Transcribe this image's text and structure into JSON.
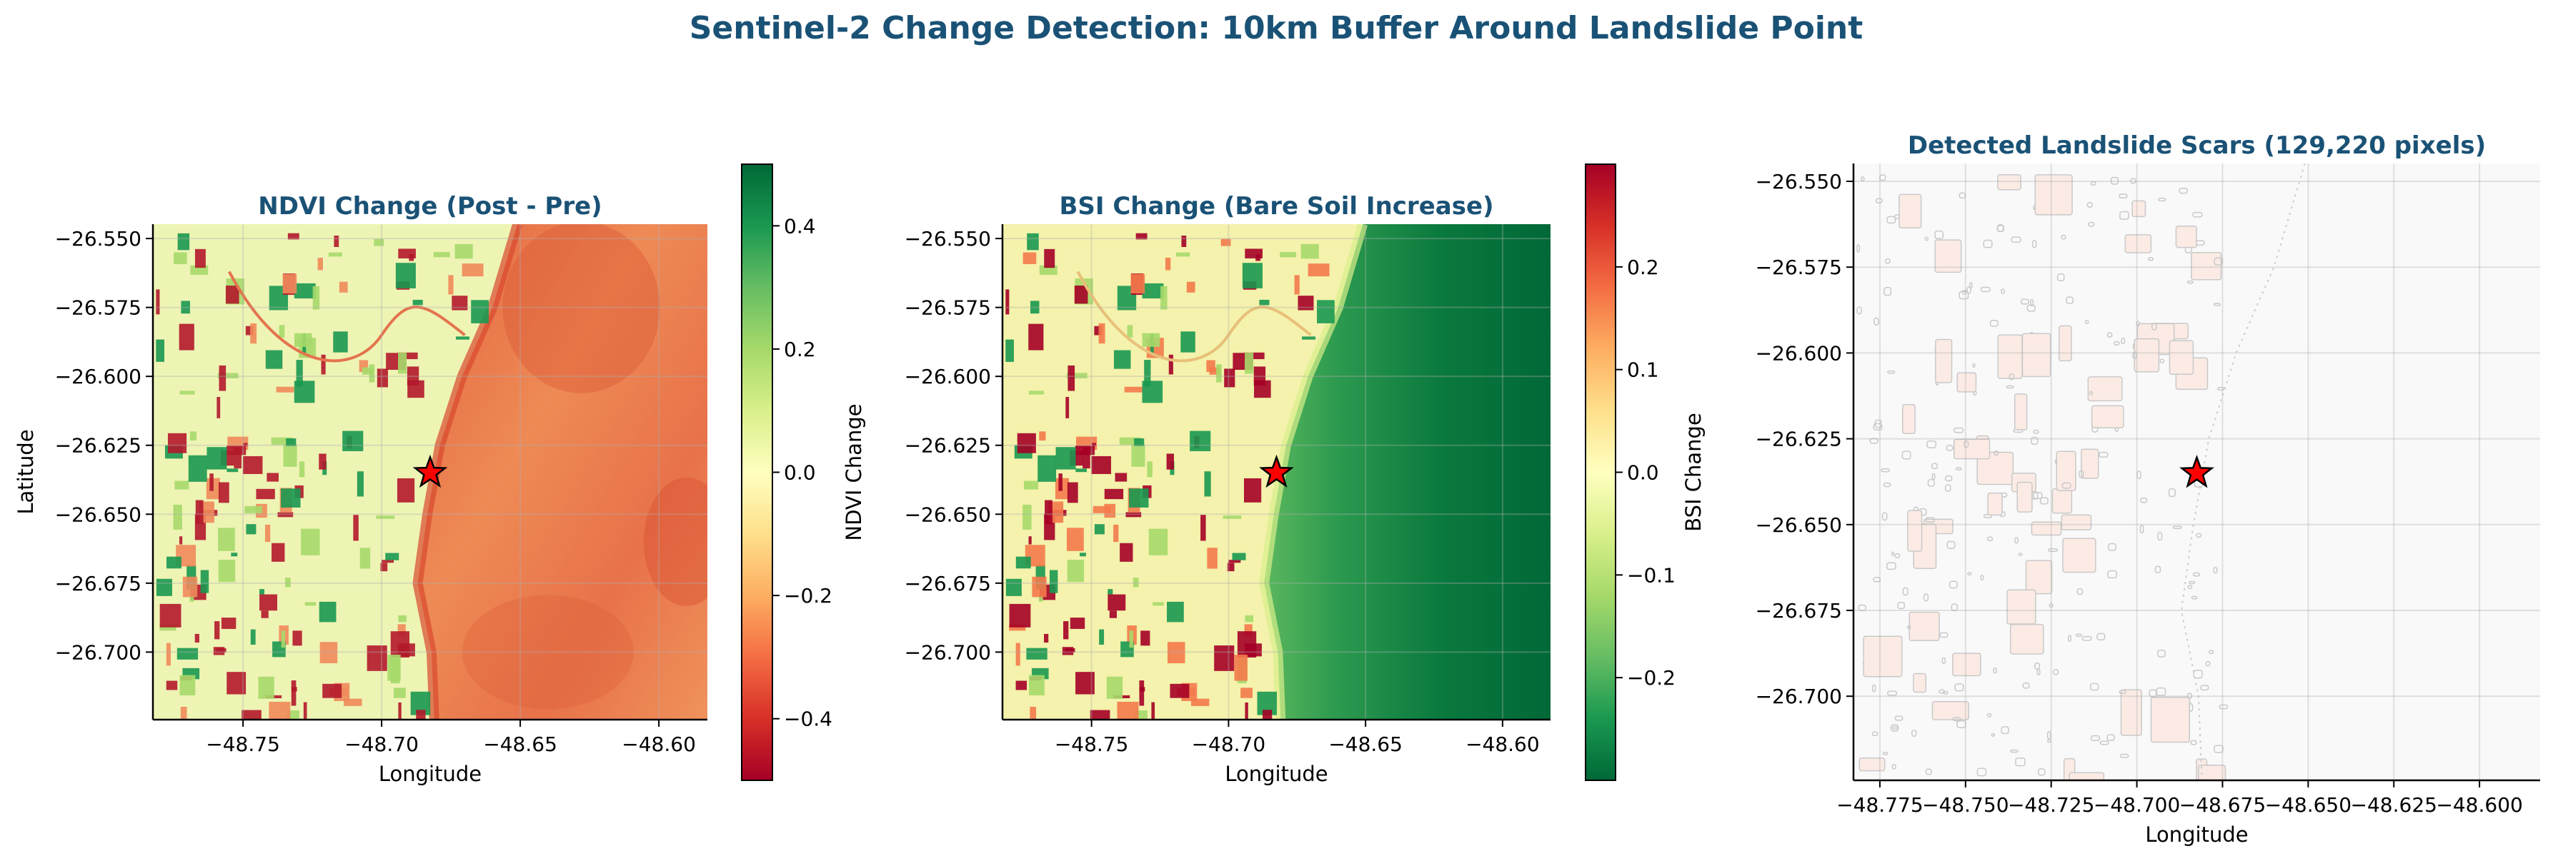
{
  "figure": {
    "title": "Sentinel-2 Change Detection: 10km Buffer Around Landslide Point",
    "title_color": "#1a5276"
  },
  "chart_data": [
    {
      "type": "heatmap",
      "title": "NDVI Change (Post - Pre)",
      "xlabel": "Longitude",
      "ylabel": "Latitude",
      "xlim": [
        -48.7825,
        -48.5825
      ],
      "ylim": [
        -26.7245,
        -26.5448
      ],
      "xticks": [
        -48.75,
        -48.7,
        -48.65,
        -48.6
      ],
      "xtick_labels": [
        "−48.75",
        "−48.70",
        "−48.65",
        "−48.60"
      ],
      "yticks": [
        -26.55,
        -26.575,
        -26.6,
        -26.625,
        -26.65,
        -26.675,
        -26.7
      ],
      "ytick_labels": [
        "−26.550",
        "−26.575",
        "−26.600",
        "−26.625",
        "−26.650",
        "−26.675",
        "−26.700"
      ],
      "grid": true,
      "colormap": "RdYlGn",
      "colorbar": {
        "label": "NDVI Change",
        "range": [
          -0.5,
          0.5
        ],
        "ticks": [
          -0.4,
          -0.2,
          0.0,
          0.2,
          0.4
        ],
        "tick_labels": [
          "−0.4",
          "−0.2",
          "0.0",
          "0.2",
          "0.4"
        ]
      },
      "marker": {
        "shape": "star",
        "lon": -48.6825,
        "lat": -26.635,
        "color": "#ff0000"
      }
    },
    {
      "type": "heatmap",
      "title": "BSI Change (Bare Soil Increase)",
      "xlabel": "Longitude",
      "ylabel": "",
      "xlim": [
        -48.7825,
        -48.5825
      ],
      "ylim": [
        -26.7245,
        -26.5448
      ],
      "xticks": [
        -48.75,
        -48.7,
        -48.65,
        -48.6
      ],
      "xtick_labels": [
        "−48.75",
        "−48.70",
        "−48.65",
        "−48.60"
      ],
      "yticks": [
        -26.55,
        -26.575,
        -26.6,
        -26.625,
        -26.65,
        -26.675,
        -26.7
      ],
      "ytick_labels": [
        "−26.550",
        "−26.575",
        "−26.600",
        "−26.625",
        "−26.650",
        "−26.675",
        "−26.700"
      ],
      "grid": true,
      "colormap": "RdYlGn_r",
      "colorbar": {
        "label": "BSI Change",
        "range": [
          -0.3,
          0.3
        ],
        "ticks": [
          -0.2,
          -0.1,
          0.0,
          0.1,
          0.2
        ],
        "tick_labels": [
          "−0.2",
          "−0.1",
          "0.0",
          "0.1",
          "0.2"
        ]
      },
      "marker": {
        "shape": "star",
        "lon": -48.6825,
        "lat": -26.635,
        "color": "#ff0000"
      }
    },
    {
      "type": "heatmap",
      "title": "Detected Landslide Scars (129,220 pixels)",
      "xlabel": "Longitude",
      "ylabel": "",
      "xlim": [
        -48.7827,
        -48.5823
      ],
      "ylim": [
        -26.7245,
        -26.5448
      ],
      "xticks": [
        -48.775,
        -48.75,
        -48.725,
        -48.7,
        -48.675,
        -48.65,
        -48.625,
        -48.6
      ],
      "xtick_labels": [
        "−48.775",
        "−48.750",
        "−48.725",
        "−48.700",
        "−48.675",
        "−48.650",
        "−48.625",
        "−48.600"
      ],
      "yticks": [
        -26.55,
        -26.575,
        -26.6,
        -26.625,
        -26.65,
        -26.675,
        -26.7
      ],
      "ytick_labels": [
        "−26.550",
        "−26.575",
        "−26.600",
        "−26.625",
        "−26.650",
        "−26.675",
        "−26.700"
      ],
      "grid": true,
      "detected_pixels": 129220,
      "marker": {
        "shape": "star",
        "lon": -48.6825,
        "lat": -26.635,
        "color": "#ff0000"
      }
    }
  ]
}
